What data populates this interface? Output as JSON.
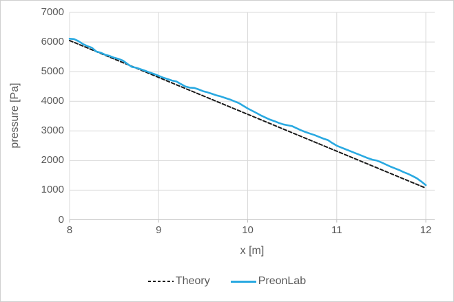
{
  "figure": {
    "background": "#ffffff",
    "border_color": "#cfcfcf"
  },
  "chart_data": {
    "type": "line",
    "title": "",
    "xlabel": "x [m]",
    "ylabel": "pressure [Pa]",
    "xlim": [
      8,
      12.1
    ],
    "ylim": [
      0,
      7000
    ],
    "x_ticks": [
      8,
      9,
      10,
      11,
      12
    ],
    "y_ticks": [
      0,
      1000,
      2000,
      3000,
      4000,
      5000,
      6000,
      7000
    ],
    "grid": true,
    "grid_color": "#d9d9d9",
    "axis_color": "#bfbfbf",
    "tick_label_color": "#595959",
    "legend_position": "bottom",
    "series": [
      {
        "name": "Theory",
        "style": "dashed",
        "color": "#1a1a1a",
        "width": 2,
        "x": [
          8,
          12
        ],
        "y": [
          6050,
          1070
        ]
      },
      {
        "name": "PreonLab",
        "style": "solid",
        "color": "#29a9e1",
        "width": 2.6,
        "x_start": 8,
        "x_step": 0.05,
        "values": [
          6110,
          6100,
          6030,
          5930,
          5860,
          5810,
          5680,
          5640,
          5570,
          5530,
          5470,
          5430,
          5370,
          5260,
          5160,
          5130,
          5080,
          5030,
          4970,
          4920,
          4860,
          4800,
          4750,
          4700,
          4670,
          4580,
          4500,
          4460,
          4450,
          4400,
          4340,
          4300,
          4250,
          4200,
          4160,
          4110,
          4060,
          4000,
          3940,
          3850,
          3760,
          3680,
          3600,
          3520,
          3450,
          3380,
          3330,
          3270,
          3220,
          3190,
          3160,
          3090,
          3020,
          2960,
          2910,
          2860,
          2800,
          2740,
          2690,
          2590,
          2500,
          2440,
          2380,
          2320,
          2260,
          2200,
          2140,
          2080,
          2030,
          2000,
          1940,
          1870,
          1800,
          1740,
          1680,
          1610,
          1550,
          1480,
          1400,
          1290,
          1170
        ]
      }
    ]
  }
}
